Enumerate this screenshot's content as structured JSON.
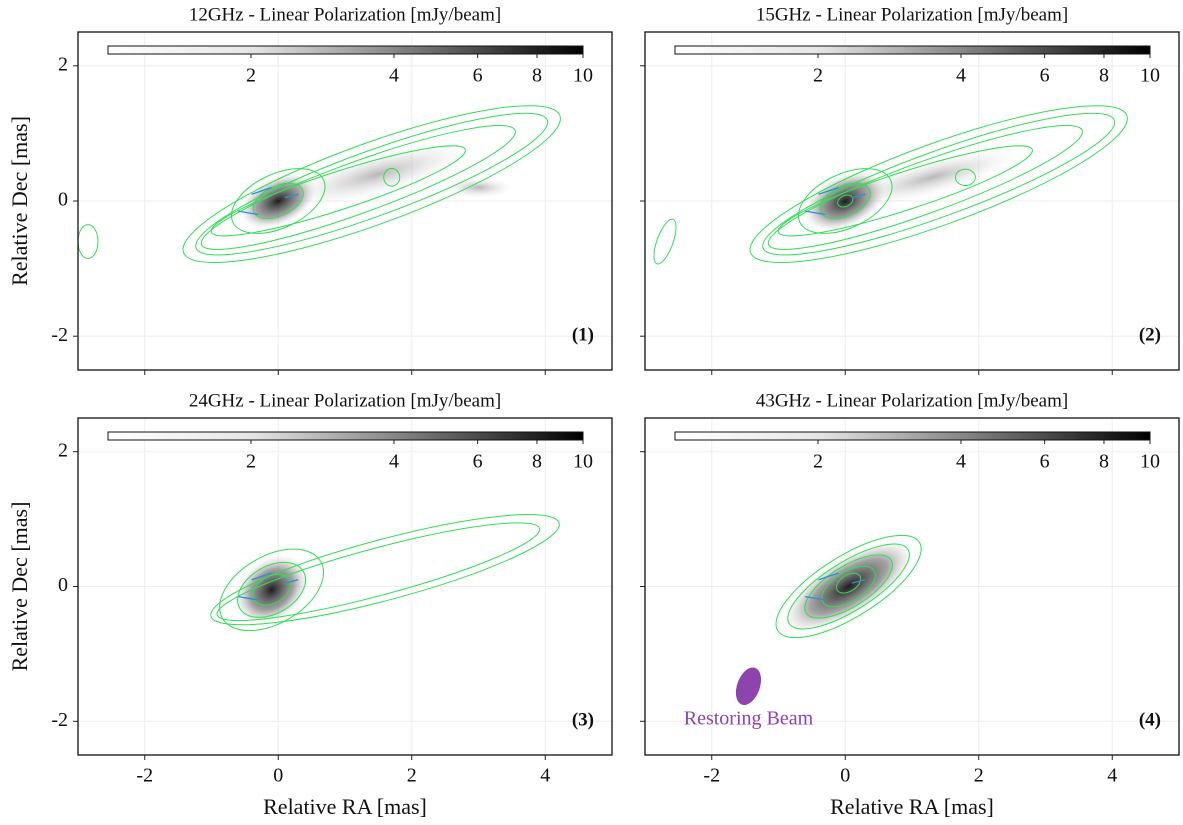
{
  "chart_data": [
    {
      "type": "image",
      "title": "12GHz - Linear Polarization [mJy/beam]",
      "panel_label": "(1)",
      "ylabel": "Relative Dec [mas]",
      "xlim": [
        -3,
        5
      ],
      "ylim": [
        -2.5,
        2.5
      ],
      "xticks": [
        -2,
        0,
        2,
        4
      ],
      "yticks": [
        -2,
        0,
        2
      ],
      "tick_labels": {
        "x": false,
        "y": true
      },
      "grid": true,
      "colorbar": {
        "lim": [
          1,
          10
        ],
        "log": true,
        "ticks": [
          2,
          4,
          6,
          8,
          10
        ],
        "cmap": "Greys"
      },
      "contour_color": "#33dd55"
    },
    {
      "type": "image",
      "title": "15GHz - Linear Polarization [mJy/beam]",
      "panel_label": "(2)",
      "xlim": [
        -3,
        5
      ],
      "ylim": [
        -2.5,
        2.5
      ],
      "xticks": [
        -2,
        0,
        2,
        4
      ],
      "yticks": [
        -2,
        0,
        2
      ],
      "tick_labels": {
        "x": false,
        "y": false
      },
      "grid": true,
      "colorbar": {
        "lim": [
          1,
          10
        ],
        "log": true,
        "ticks": [
          2,
          4,
          6,
          8,
          10
        ],
        "cmap": "Greys"
      },
      "contour_color": "#33dd55"
    },
    {
      "type": "image",
      "title": "24GHz - Linear Polarization [mJy/beam]",
      "panel_label": "(3)",
      "xlabel": "Relative RA [mas]",
      "ylabel": "Relative Dec [mas]",
      "xlim": [
        -3,
        5
      ],
      "ylim": [
        -2.5,
        2.5
      ],
      "xticks": [
        -2,
        0,
        2,
        4
      ],
      "yticks": [
        -2,
        0,
        2
      ],
      "tick_labels": {
        "x": true,
        "y": true
      },
      "grid": true,
      "colorbar": {
        "lim": [
          1,
          10
        ],
        "log": true,
        "ticks": [
          2,
          4,
          6,
          8,
          10
        ],
        "cmap": "Greys"
      },
      "contour_color": "#33dd55"
    },
    {
      "type": "image",
      "title": "43GHz - Linear Polarization [mJy/beam]",
      "panel_label": "(4)",
      "xlabel": "Relative RA [mas]",
      "xlim": [
        -3,
        5
      ],
      "ylim": [
        -2.5,
        2.5
      ],
      "xticks": [
        -2,
        0,
        2,
        4
      ],
      "yticks": [
        -2,
        0,
        2
      ],
      "tick_labels": {
        "x": true,
        "y": false
      },
      "grid": true,
      "colorbar": {
        "lim": [
          1,
          10
        ],
        "log": true,
        "ticks": [
          2,
          4,
          6,
          8,
          10
        ],
        "cmap": "Greys"
      },
      "contour_color": "#33dd55",
      "annotation": "Restoring Beam",
      "beam_color": "#8e44ad"
    }
  ]
}
